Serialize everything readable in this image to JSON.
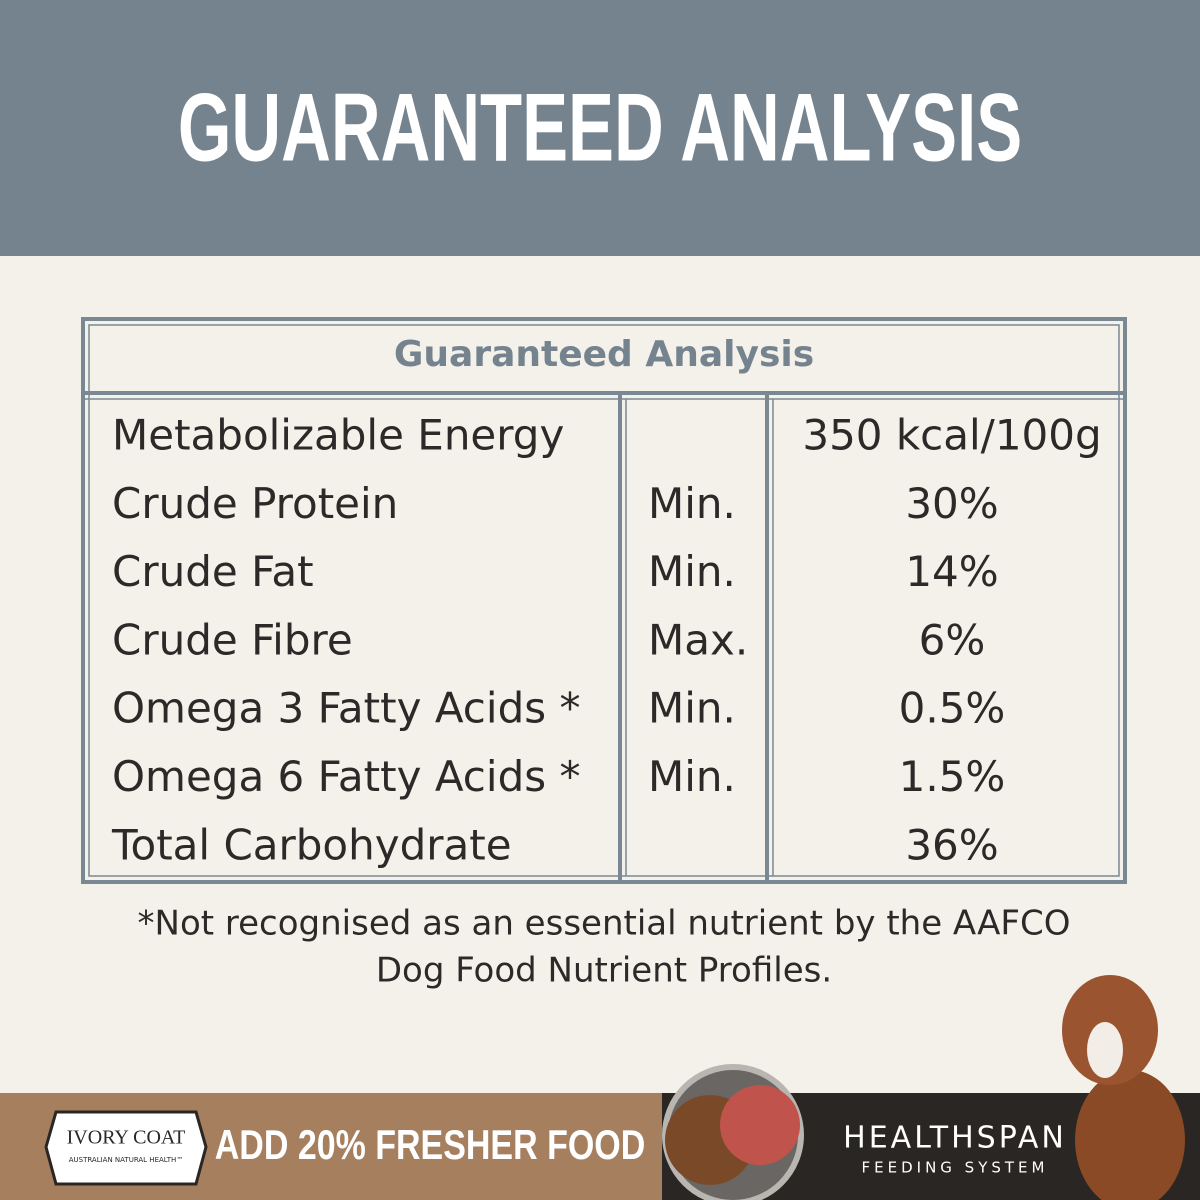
{
  "header": {
    "title": "GUARANTEED ANALYSIS"
  },
  "table": {
    "title": "Guaranteed Analysis",
    "rows": [
      {
        "name": "Metabolizable Energy",
        "value": "350 kcal/100g"
      },
      {
        "name": "Crude Protein",
        "qualifier": "Min.",
        "value": "30%"
      },
      {
        "name": "Crude Fat",
        "qualifier": "Min.",
        "value": "14%"
      },
      {
        "name": "Crude Fibre",
        "qualifier": "Max.",
        "value": "6%"
      },
      {
        "name": "Omega 3 Fatty Acids *",
        "qualifier": "Min.",
        "value": "0.5%"
      },
      {
        "name": "Omega 6 Fatty Acids *",
        "qualifier": "Min.",
        "value": "1.5%"
      },
      {
        "name": "Total Carbohydrate",
        "value": "36%"
      }
    ]
  },
  "footnote": [
    "*Not recognised as an essential nutrient by the AAFCO",
    "Dog Food Nutrient Profiles."
  ],
  "banner": {
    "logo": "IVORY COAT",
    "logo_sub": "AUSTRALIAN NATURAL HEALTH™",
    "tagline": "ADD 20% FRESHER FOOD",
    "brand": "HEALTHSPAN",
    "brand_sub": "FEEDING SYSTEM"
  }
}
